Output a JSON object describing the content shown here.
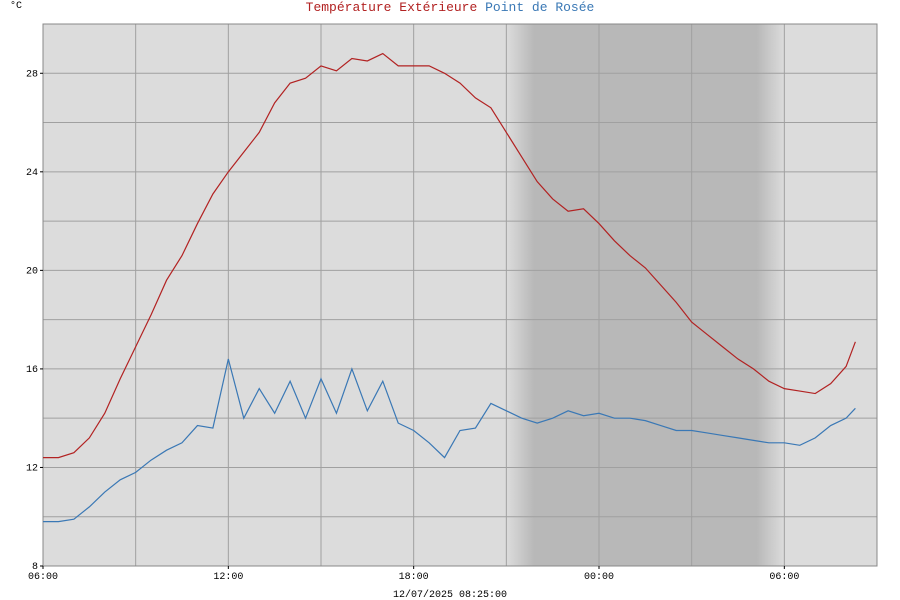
{
  "chart_data": {
    "type": "line",
    "title": [
      "Température Extérieure",
      "Point de Rosée"
    ],
    "y_unit": "°C",
    "footer": "12/07/2025 08:25:00",
    "x": [
      0,
      0.5,
      1,
      1.5,
      2,
      2.5,
      3,
      3.5,
      4,
      4.5,
      5,
      5.5,
      6,
      6.5,
      7,
      7.5,
      8,
      8.5,
      9,
      9.5,
      10,
      10.5,
      11,
      11.5,
      12,
      12.5,
      13,
      13.5,
      14,
      14.5,
      15,
      15.5,
      16,
      16.5,
      17,
      17.5,
      18,
      18.5,
      19,
      19.5,
      20,
      20.5,
      21,
      21.5,
      22,
      22.5,
      23,
      23.5,
      24,
      24.5,
      25,
      25.5,
      26,
      26.3
    ],
    "series": [
      {
        "name": "Température Extérieure",
        "color": "#b22222",
        "values": [
          12.4,
          12.4,
          12.6,
          13.2,
          14.2,
          15.6,
          16.9,
          18.2,
          19.6,
          20.6,
          21.9,
          23.1,
          24.0,
          24.8,
          25.6,
          26.8,
          27.6,
          27.8,
          28.3,
          28.1,
          28.6,
          28.5,
          28.8,
          28.3,
          28.3,
          28.3,
          28.0,
          27.6,
          27.0,
          26.6,
          25.6,
          24.6,
          23.6,
          22.9,
          22.4,
          22.5,
          21.9,
          21.2,
          20.6,
          20.1,
          19.4,
          18.7,
          17.9,
          17.4,
          16.9,
          16.4,
          16.0,
          15.5,
          15.2,
          15.1,
          15.0,
          15.4,
          16.1,
          17.1
        ]
      },
      {
        "name": "Point de Rosée",
        "color": "#3a78b5",
        "values": [
          9.8,
          9.8,
          9.9,
          10.4,
          11.0,
          11.5,
          11.8,
          12.3,
          12.7,
          13.0,
          13.7,
          13.6,
          16.4,
          14.0,
          15.2,
          14.2,
          15.5,
          14.0,
          15.6,
          14.2,
          16.0,
          14.3,
          15.5,
          13.8,
          13.5,
          13.0,
          12.4,
          13.5,
          13.6,
          14.6,
          14.3,
          14.0,
          13.8,
          14.0,
          14.3,
          14.1,
          14.2,
          14.0,
          14.0,
          13.9,
          13.7,
          13.5,
          13.5,
          13.4,
          13.3,
          13.2,
          13.1,
          13.0,
          13.0,
          12.9,
          13.2,
          13.7,
          14.0,
          14.4
        ]
      }
    ],
    "xlim": [
      0,
      27
    ],
    "xticks": [
      {
        "value": 0,
        "label": "06:00"
      },
      {
        "value": 6,
        "label": "12:00"
      },
      {
        "value": 12,
        "label": "18:00"
      },
      {
        "value": 18,
        "label": "00:00"
      },
      {
        "value": 24,
        "label": "06:00"
      }
    ],
    "xgrid": [
      3,
      6,
      9,
      12,
      15,
      18,
      21,
      24
    ],
    "ylim": [
      8,
      30
    ],
    "yticks": [
      8,
      12,
      16,
      20,
      24,
      28
    ],
    "ygrid": [
      10,
      12,
      14,
      16,
      18,
      20,
      22,
      24,
      26,
      28
    ],
    "night": [
      15,
      24
    ],
    "grid": true
  }
}
